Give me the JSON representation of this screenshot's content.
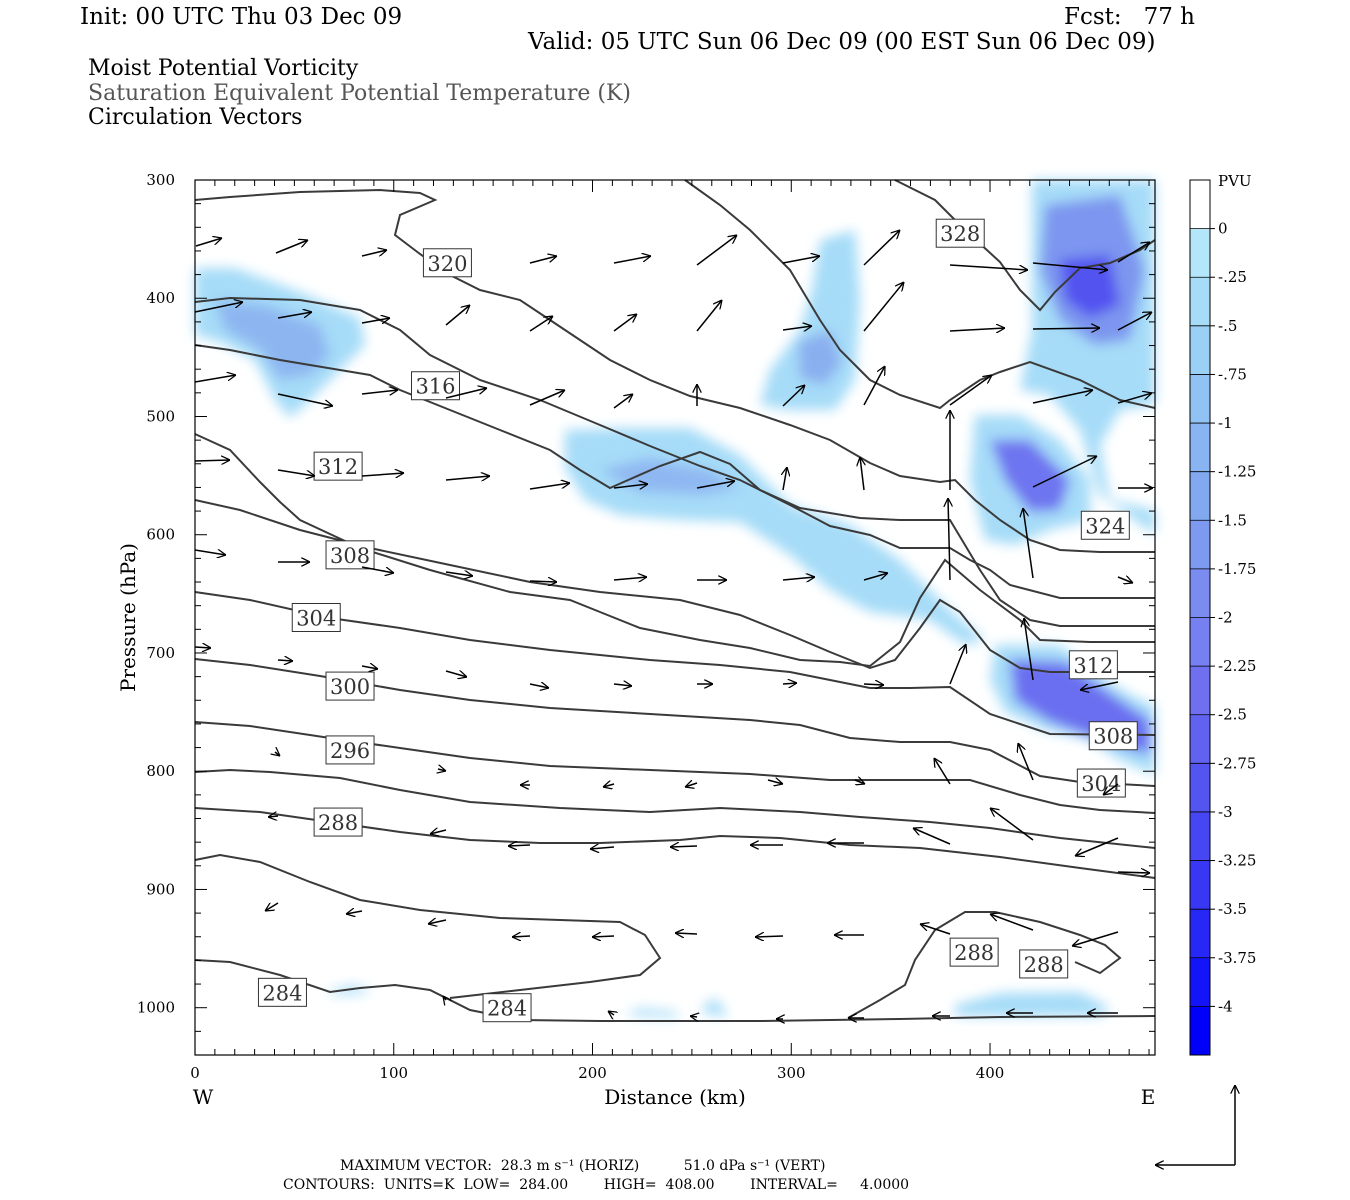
{
  "header": {
    "init": "Init: 00 UTC Thu 03 Dec 09",
    "fcst": "Fcst:   77 h",
    "valid": "Valid: 05 UTC Sun 06 Dec 09 (00 EST Sun 06 Dec 09)",
    "line1": "Moist Potential Vorticity",
    "line2": "Saturation Equivalent Potential Temperature (K)",
    "line3": "Circulation Vectors"
  },
  "footer": {
    "max_vector": "MAXIMUM VECTOR:  28.3 m s⁻¹ (HORIZ)          51.0 dPa s⁻¹ (VERT)",
    "contours": "CONTOURS:  UNITS=K  LOW=  284.00        HIGH=  408.00        INTERVAL=     4.0000"
  },
  "chart_data": {
    "type": "cross-section",
    "xlabel": "Distance (km)",
    "ylabel": "Pressure (hPa)",
    "x_ticks": [
      0,
      100,
      200,
      300,
      400
    ],
    "y_ticks": [
      300,
      400,
      500,
      600,
      700,
      800,
      900,
      1000
    ],
    "xlim": [
      0,
      483
    ],
    "ylim": [
      300,
      1040
    ],
    "x_end_labels": {
      "left": "W",
      "right": "E"
    },
    "colorbar": {
      "unit": "PVU",
      "labels": [
        "0",
        "-.25",
        "-.5",
        "-.75",
        "-1",
        "-1.25",
        "-1.5",
        "-1.75",
        "-2",
        "-2.25",
        "-2.5",
        "-2.75",
        "-3",
        "-3.25",
        "-3.5",
        "-3.75",
        "-4"
      ],
      "colors": [
        "#ffffff",
        "#b4e6fa",
        "#a6dcf8",
        "#9ad0f6",
        "#90c3f4",
        "#88b5f2",
        "#82a8f0",
        "#7e9af0",
        "#7a8cf0",
        "#7680f0",
        "#6e70f0",
        "#6262f0",
        "#5454f0",
        "#4646f2",
        "#3838f4",
        "#2828f6",
        "#1414f8",
        "#0000fa"
      ]
    },
    "contour_labels": [
      {
        "text": "320",
        "x": 127,
        "p": 370
      },
      {
        "text": "328",
        "x": 385,
        "p": 345
      },
      {
        "text": "316",
        "x": 121,
        "p": 474
      },
      {
        "text": "312",
        "x": 72,
        "p": 542
      },
      {
        "text": "324",
        "x": 458,
        "p": 592
      },
      {
        "text": "308",
        "x": 78,
        "p": 617
      },
      {
        "text": "304",
        "x": 61,
        "p": 670
      },
      {
        "text": "312",
        "x": 452,
        "p": 710
      },
      {
        "text": "300",
        "x": 78,
        "p": 728
      },
      {
        "text": "308",
        "x": 462,
        "p": 770
      },
      {
        "text": "296",
        "x": 78,
        "p": 782
      },
      {
        "text": "304",
        "x": 456,
        "p": 810
      },
      {
        "text": "288",
        "x": 72,
        "p": 843
      },
      {
        "text": "288",
        "x": 392,
        "p": 953
      },
      {
        "text": "288",
        "x": 427,
        "p": 963
      },
      {
        "text": "284",
        "x": 44,
        "p": 987
      },
      {
        "text": "284",
        "x": 157,
        "p": 1000
      }
    ]
  }
}
